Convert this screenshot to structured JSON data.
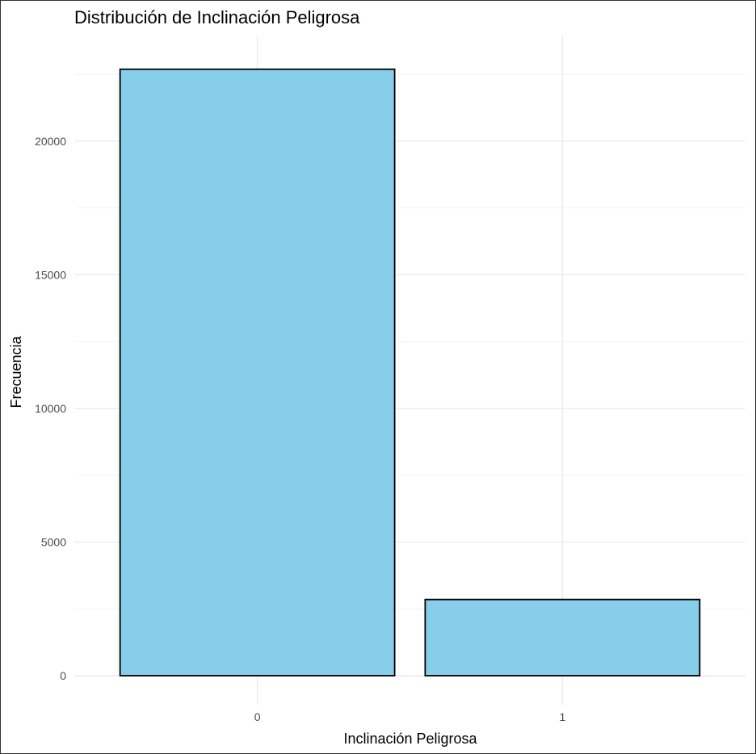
{
  "chart_data": {
    "type": "bar",
    "title": "Distribución de Inclinación Peligrosa",
    "xlabel": "Inclinación Peligrosa",
    "ylabel": "Frecuencia",
    "categories": [
      "0",
      "1"
    ],
    "values": [
      22690,
      2850
    ],
    "ylim": [
      0,
      23800
    ],
    "yticks": [
      0,
      5000,
      10000,
      15000,
      20000
    ],
    "ytick_labels": [
      "0",
      "5000",
      "10000",
      "15000",
      "20000"
    ],
    "grid": true,
    "legend": "none",
    "bar_fill": "#87CEEB",
    "bar_stroke": "#000000"
  }
}
